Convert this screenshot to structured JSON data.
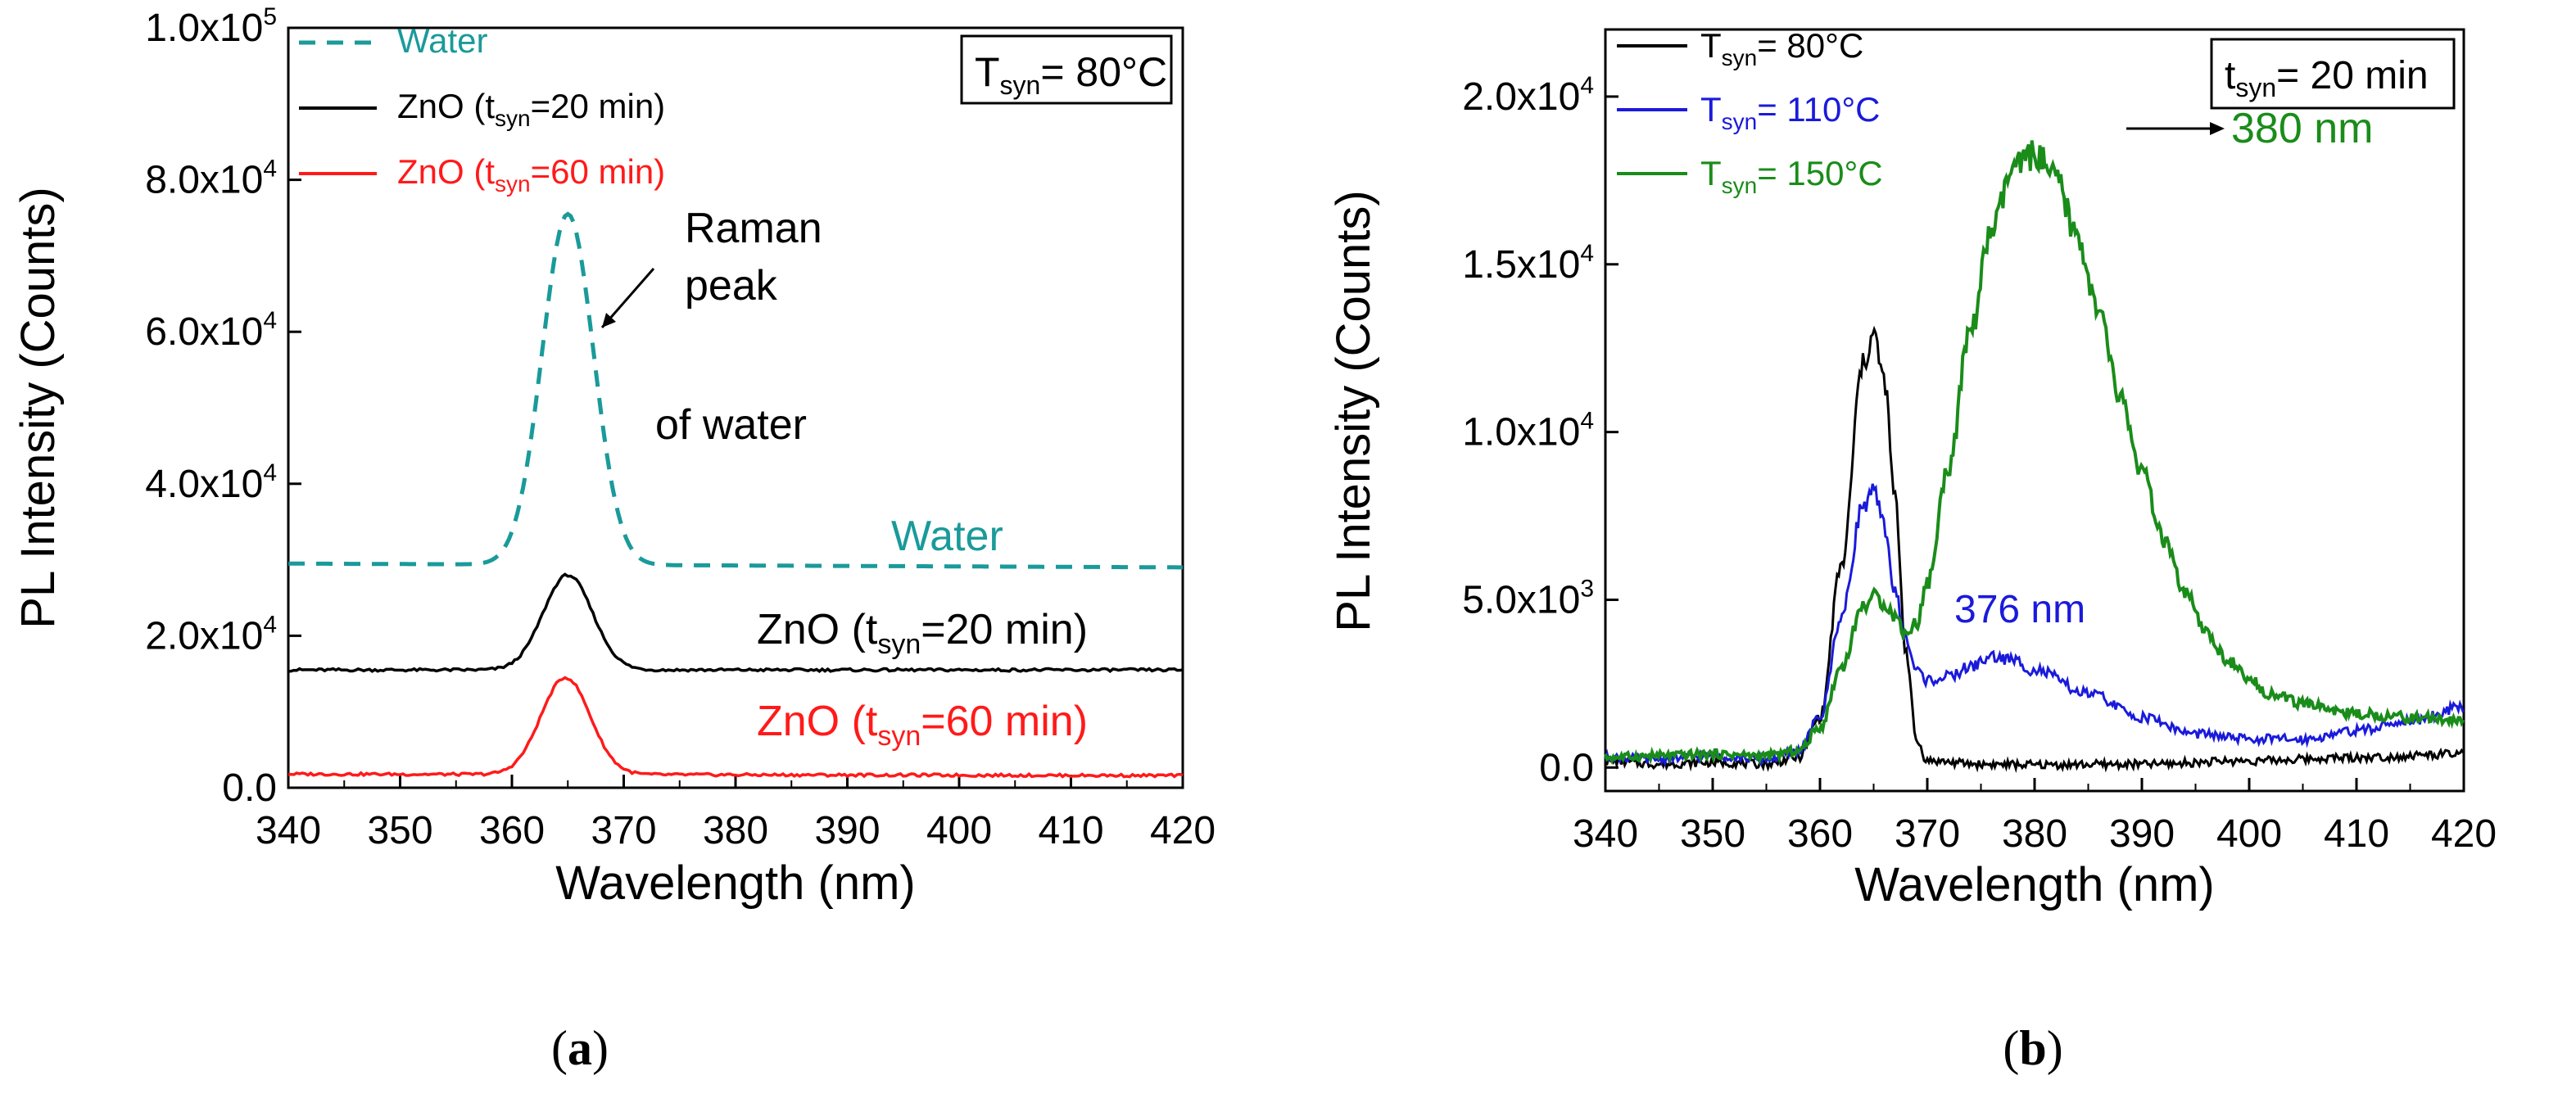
{
  "chart_data": [
    {
      "id": "a",
      "type": "line",
      "caption_label": "a",
      "xlabel": "Wavelength (nm)",
      "ylabel": "PL Intensity (Counts)",
      "xlim": [
        340,
        420
      ],
      "ylim": [
        0,
        100000
      ],
      "x_ticks": [
        "340",
        "350",
        "360",
        "370",
        "380",
        "390",
        "400",
        "410",
        "420"
      ],
      "y_ticks": [
        {
          "base": "0.0",
          "exp": ""
        },
        {
          "base": "2.0x10",
          "exp": "4"
        },
        {
          "base": "4.0x10",
          "exp": "4"
        },
        {
          "base": "6.0x10",
          "exp": "4"
        },
        {
          "base": "8.0x10",
          "exp": "4"
        },
        {
          "base": "1.0x10",
          "exp": "5"
        }
      ],
      "condition_box": {
        "var": "T",
        "sub": "syn",
        "rest": "= 80°C"
      },
      "legend": [
        {
          "pre": "Water",
          "sub": "",
          "post": "",
          "color": "#1a9a9a",
          "dash": true
        },
        {
          "pre": "ZnO (t",
          "sub": "syn",
          "post": "=20 min)",
          "color": "#000000",
          "dash": false
        },
        {
          "pre": "ZnO (t",
          "sub": "syn",
          "post": "=60 min)",
          "color": "#ff1a1a",
          "dash": false
        }
      ],
      "series": [
        {
          "name": "Water",
          "color": "#1a9a9a",
          "dash": true,
          "baseline_left": 29500,
          "baseline_right": 29000,
          "peak_x": 365,
          "peak_y": 75500,
          "sigma": 2.3
        },
        {
          "name": "ZnO (tsyn=20 min)",
          "color": "#000000",
          "dash": false,
          "baseline_left": 15500,
          "baseline_right": 15500,
          "peak_x": 365,
          "peak_y": 28000,
          "sigma": 2.2
        },
        {
          "name": "ZnO (tsyn=60 min)",
          "color": "#ff1a1a",
          "dash": false,
          "baseline_left": 1800,
          "baseline_right": 1600,
          "peak_x": 364.8,
          "peak_y": 14500,
          "sigma": 2.2
        }
      ],
      "annotations": [
        {
          "name": "raman-annotation",
          "lines": [
            "Raman",
            "peak",
            "of water"
          ],
          "color": "#000000"
        },
        {
          "name": "water-label",
          "pre": "Water",
          "sub": "",
          "post": "",
          "color": "#1a9a9a"
        },
        {
          "name": "zno20-label",
          "pre": "ZnO (t",
          "sub": "syn",
          "post": "=20 min)",
          "color": "#000000"
        },
        {
          "name": "zno60-label",
          "pre": "ZnO (t",
          "sub": "syn",
          "post": "=60 min)",
          "color": "#ff1a1a"
        }
      ]
    },
    {
      "id": "b",
      "type": "line",
      "caption_label": "b",
      "xlabel": "Wavelength (nm)",
      "ylabel": "PL Intensity (Counts)",
      "xlim": [
        340,
        420
      ],
      "ylim": [
        -700,
        22000
      ],
      "x_ticks": [
        "340",
        "350",
        "360",
        "370",
        "380",
        "390",
        "400",
        "410",
        "420"
      ],
      "y_ticks": [
        {
          "value": 0,
          "base": "0.0",
          "exp": ""
        },
        {
          "value": 5000,
          "base": "5.0x10",
          "exp": "3"
        },
        {
          "value": 10000,
          "base": "1.0x10",
          "exp": "4"
        },
        {
          "value": 15000,
          "base": "1.5x10",
          "exp": "4"
        },
        {
          "value": 20000,
          "base": "2.0x10",
          "exp": "4"
        }
      ],
      "condition_box": {
        "var": "t",
        "sub": "syn",
        "rest": "= 20 min"
      },
      "legend": [
        {
          "pre": "T",
          "sub": "syn",
          "post": "= 80°C",
          "color": "#000000"
        },
        {
          "pre": "T",
          "sub": "syn",
          "post": "= 110°C",
          "color": "#1a1adb"
        },
        {
          "pre": "T",
          "sub": "syn",
          "post": "= 150°C",
          "color": "#1a8c1a"
        }
      ],
      "series": [
        {
          "name": "Tsyn = 80°C",
          "color": "#000000",
          "points": [
            [
              340,
              200
            ],
            [
              345,
              100
            ],
            [
              350,
              150
            ],
            [
              355,
              100
            ],
            [
              358,
              300
            ],
            [
              360,
              1500
            ],
            [
              362,
              6000
            ],
            [
              364,
              12000
            ],
            [
              365,
              12900
            ],
            [
              366,
              11500
            ],
            [
              367,
              8000
            ],
            [
              368,
              3500
            ],
            [
              369,
              800
            ],
            [
              370,
              200
            ],
            [
              375,
              100
            ],
            [
              380,
              80
            ],
            [
              390,
              100
            ],
            [
              400,
              200
            ],
            [
              410,
              300
            ],
            [
              420,
              400
            ]
          ]
        },
        {
          "name": "Tsyn = 110°C",
          "color": "#1a1adb",
          "points": [
            [
              340,
              300
            ],
            [
              345,
              250
            ],
            [
              350,
              350
            ],
            [
              355,
              250
            ],
            [
              358,
              500
            ],
            [
              360,
              1500
            ],
            [
              362,
              4500
            ],
            [
              364,
              7800
            ],
            [
              365,
              8200
            ],
            [
              366,
              7200
            ],
            [
              367,
              5200
            ],
            [
              368,
              3800
            ],
            [
              369,
              2900
            ],
            [
              370,
              2600
            ],
            [
              372,
              2700
            ],
            [
              374,
              3000
            ],
            [
              376,
              3300
            ],
            [
              378,
              3200
            ],
            [
              380,
              2900
            ],
            [
              385,
              2200
            ],
            [
              390,
              1500
            ],
            [
              395,
              1000
            ],
            [
              400,
              850
            ],
            [
              405,
              850
            ],
            [
              410,
              1100
            ],
            [
              415,
              1400
            ],
            [
              420,
              1800
            ]
          ]
        },
        {
          "name": "Tsyn = 150°C",
          "color": "#1a8c1a",
          "points": [
            [
              340,
              300
            ],
            [
              345,
              350
            ],
            [
              350,
              400
            ],
            [
              355,
              350
            ],
            [
              358,
              500
            ],
            [
              360,
              1200
            ],
            [
              362,
              3000
            ],
            [
              364,
              4800
            ],
            [
              365,
              5100
            ],
            [
              366,
              4900
            ],
            [
              367,
              4500
            ],
            [
              368,
              4000
            ],
            [
              369,
              4300
            ],
            [
              370,
              5500
            ],
            [
              372,
              9000
            ],
            [
              374,
              13000
            ],
            [
              376,
              16000
            ],
            [
              378,
              17800
            ],
            [
              380,
              18300
            ],
            [
              382,
              17500
            ],
            [
              384,
              15800
            ],
            [
              386,
              13500
            ],
            [
              388,
              11000
            ],
            [
              390,
              8800
            ],
            [
              392,
              6800
            ],
            [
              394,
              5200
            ],
            [
              396,
              4000
            ],
            [
              398,
              3200
            ],
            [
              400,
              2600
            ],
            [
              402,
              2200
            ],
            [
              405,
              1900
            ],
            [
              410,
              1600
            ],
            [
              415,
              1500
            ],
            [
              420,
              1400
            ]
          ]
        }
      ],
      "annotations": [
        {
          "name": "peak-380-label",
          "text": "380 nm",
          "color": "#1a8c1a"
        },
        {
          "name": "peak-376-label",
          "text": "376 nm",
          "color": "#1a1adb"
        }
      ]
    }
  ]
}
